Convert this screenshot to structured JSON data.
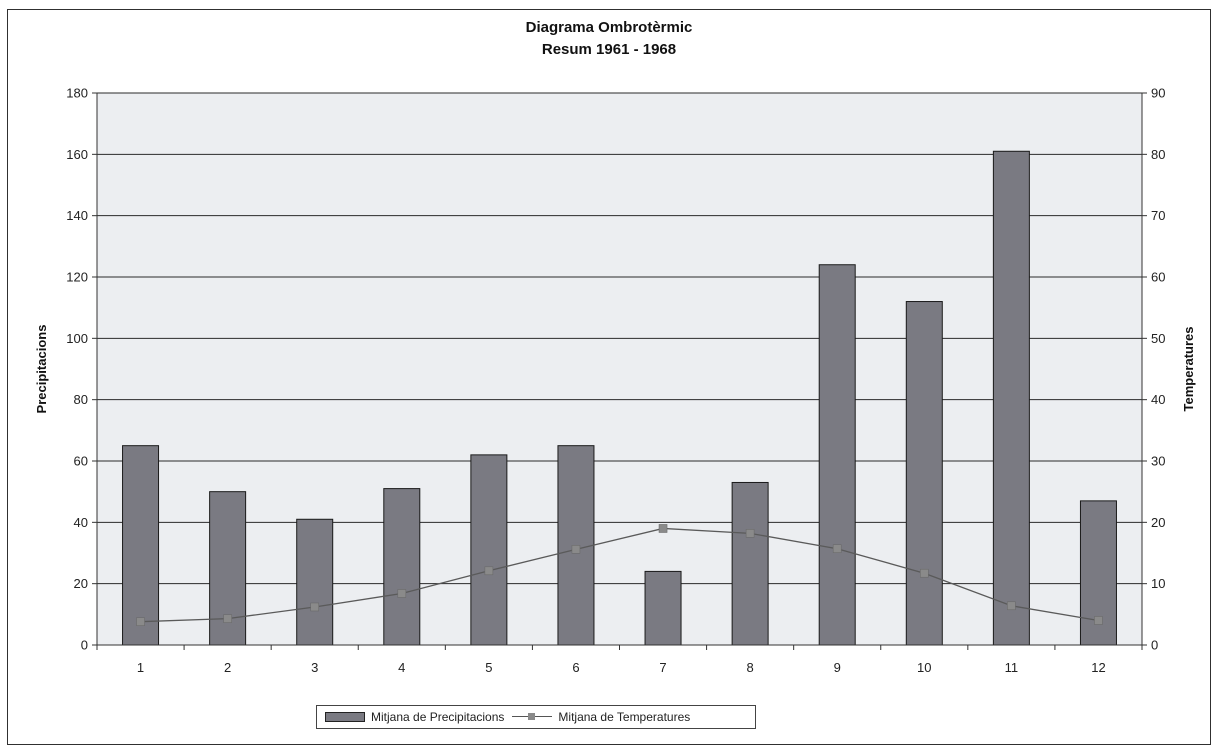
{
  "chart_data": {
    "type": "bar",
    "title": "Diagrama Ombrotèrmic",
    "subtitle": "Resum 1961 - 1968",
    "xlabel": "",
    "ylabel": "Precipitacions",
    "y2label": "Temperatures",
    "categories": [
      "1",
      "2",
      "3",
      "4",
      "5",
      "6",
      "7",
      "8",
      "9",
      "10",
      "11",
      "12"
    ],
    "ylim": [
      0,
      180
    ],
    "y2lim": [
      0,
      90
    ],
    "yticks": [
      "0",
      "20",
      "40",
      "60",
      "80",
      "100",
      "120",
      "140",
      "160",
      "180"
    ],
    "y2ticks": [
      "0",
      "10",
      "20",
      "30",
      "40",
      "50",
      "60",
      "70",
      "80",
      "90"
    ],
    "grid": true,
    "legend_position": "bottom",
    "series": [
      {
        "name": "Mitjana de Precipitacions",
        "type": "bar",
        "axis": "left",
        "values": [
          65,
          50,
          41,
          51,
          62,
          65,
          24,
          53,
          124,
          112,
          161,
          47
        ]
      },
      {
        "name": "Mitjana de Temperatures",
        "type": "line",
        "axis": "right",
        "values": [
          3.8,
          4.3,
          6.2,
          8.4,
          12.1,
          15.6,
          19.0,
          18.2,
          15.7,
          11.7,
          6.4,
          4.0
        ]
      }
    ],
    "colors": {
      "bar_fill": "#7a7a82",
      "bar_stroke": "#1a1a1a",
      "line": "#5a5a5a",
      "marker": "#8a8a8a",
      "plot_bg": "#eceef1",
      "grid": "#2a2a2a"
    }
  }
}
